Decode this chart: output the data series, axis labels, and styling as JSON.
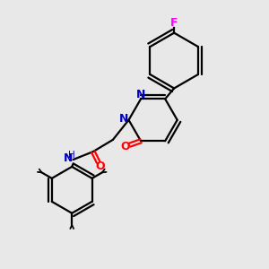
{
  "bg_color": "#e8e8e8",
  "atom_colors": {
    "C": "#000000",
    "N": "#0000cd",
    "O": "#ff0000",
    "F": "#ff00ff",
    "H": "#000000"
  },
  "bond_color": "#000000",
  "bond_width": 1.6,
  "fig_size": [
    3.0,
    3.0
  ],
  "dpi": 100
}
